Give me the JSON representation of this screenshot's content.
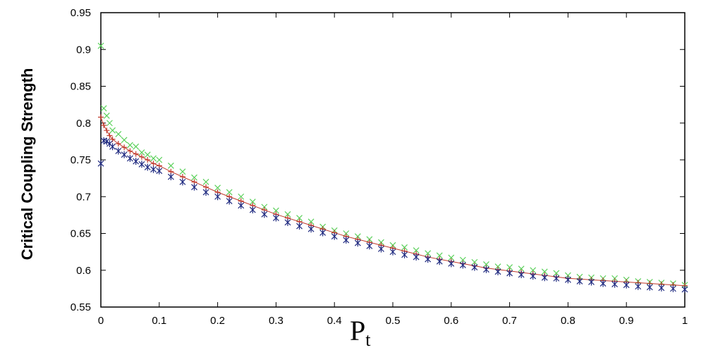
{
  "chart_data": {
    "type": "scatter",
    "title": "",
    "ylabel": "Critical Coupling Strength",
    "xlabel_main": "P",
    "xlabel_sub": "t",
    "xlim": [
      0,
      1
    ],
    "ylim": [
      0.55,
      0.95
    ],
    "xticks": [
      0,
      0.1,
      0.2,
      0.3,
      0.4,
      0.5,
      0.6,
      0.7,
      0.8,
      0.9,
      1
    ],
    "xtick_labels": [
      "0",
      "0.1",
      "0.2",
      "0.3",
      "0.4",
      "0.5",
      "0.6",
      "0.7",
      "0.8",
      "0.9",
      "1"
    ],
    "yticks": [
      0.55,
      0.6,
      0.65,
      0.7,
      0.75,
      0.8,
      0.85,
      0.9,
      0.95
    ],
    "ytick_labels": [
      "0.55",
      "0.6",
      "0.65",
      "0.7",
      "0.75",
      "0.8",
      "0.85",
      "0.9",
      "0.95"
    ],
    "grid": false,
    "series": [
      {
        "color": "#5ad05a",
        "marker": "x",
        "x": [
          0,
          0.005,
          0.01,
          0.015,
          0.02,
          0.03,
          0.04,
          0.05,
          0.06,
          0.07,
          0.08,
          0.09,
          0.1,
          0.12,
          0.14,
          0.16,
          0.18,
          0.2,
          0.22,
          0.24,
          0.26,
          0.28,
          0.3,
          0.32,
          0.34,
          0.36,
          0.38,
          0.4,
          0.42,
          0.44,
          0.46,
          0.48,
          0.5,
          0.52,
          0.54,
          0.56,
          0.58,
          0.6,
          0.62,
          0.64,
          0.66,
          0.68,
          0.7,
          0.72,
          0.74,
          0.76,
          0.78,
          0.8,
          0.82,
          0.84,
          0.86,
          0.88,
          0.9,
          0.92,
          0.94,
          0.96,
          0.98,
          1.0
        ],
        "y": [
          0.905,
          0.82,
          0.81,
          0.8,
          0.79,
          0.785,
          0.777,
          0.77,
          0.768,
          0.76,
          0.757,
          0.752,
          0.75,
          0.742,
          0.734,
          0.726,
          0.72,
          0.712,
          0.706,
          0.7,
          0.693,
          0.686,
          0.681,
          0.676,
          0.671,
          0.666,
          0.659,
          0.654,
          0.65,
          0.646,
          0.642,
          0.638,
          0.634,
          0.631,
          0.627,
          0.623,
          0.62,
          0.617,
          0.614,
          0.611,
          0.608,
          0.605,
          0.604,
          0.602,
          0.6,
          0.598,
          0.596,
          0.593,
          0.591,
          0.59,
          0.589,
          0.589,
          0.587,
          0.585,
          0.584,
          0.583,
          0.582,
          0.58
        ]
      },
      {
        "color": "#c0392b",
        "marker": "+",
        "x": [
          0,
          0.005,
          0.01,
          0.015,
          0.02,
          0.03,
          0.04,
          0.05,
          0.06,
          0.07,
          0.08,
          0.09,
          0.1,
          0.12,
          0.14,
          0.16,
          0.18,
          0.2,
          0.22,
          0.24,
          0.26,
          0.28,
          0.3,
          0.32,
          0.34,
          0.36,
          0.38,
          0.4,
          0.42,
          0.44,
          0.46,
          0.48,
          0.5,
          0.52,
          0.54,
          0.56,
          0.58,
          0.6,
          0.62,
          0.64,
          0.66,
          0.68,
          0.7,
          0.72,
          0.74,
          0.76,
          0.78,
          0.8,
          0.82,
          0.84,
          0.86,
          0.88,
          0.9,
          0.92,
          0.94,
          0.96,
          0.98,
          1.0
        ],
        "y": [
          0.808,
          0.797,
          0.79,
          0.783,
          0.778,
          0.772,
          0.767,
          0.762,
          0.758,
          0.754,
          0.75,
          0.745,
          0.742,
          0.734,
          0.727,
          0.72,
          0.713,
          0.706,
          0.7,
          0.694,
          0.688,
          0.682,
          0.676,
          0.671,
          0.666,
          0.661,
          0.656,
          0.651,
          0.646,
          0.642,
          0.638,
          0.634,
          0.63,
          0.626,
          0.622,
          0.618,
          0.615,
          0.612,
          0.609,
          0.606,
          0.603,
          0.601,
          0.599,
          0.597,
          0.595,
          0.593,
          0.591,
          0.589,
          0.588,
          0.587,
          0.586,
          0.585,
          0.584,
          0.583,
          0.582,
          0.581,
          0.58,
          0.579
        ]
      },
      {
        "color": "#1f2a80",
        "marker": "*",
        "x": [
          0,
          0.005,
          0.01,
          0.015,
          0.02,
          0.03,
          0.04,
          0.05,
          0.06,
          0.07,
          0.08,
          0.09,
          0.1,
          0.12,
          0.14,
          0.16,
          0.18,
          0.2,
          0.22,
          0.24,
          0.26,
          0.28,
          0.3,
          0.32,
          0.34,
          0.36,
          0.38,
          0.4,
          0.42,
          0.44,
          0.46,
          0.48,
          0.5,
          0.52,
          0.54,
          0.56,
          0.58,
          0.6,
          0.62,
          0.64,
          0.66,
          0.68,
          0.7,
          0.72,
          0.74,
          0.76,
          0.78,
          0.8,
          0.82,
          0.84,
          0.86,
          0.88,
          0.9,
          0.92,
          0.94,
          0.96,
          0.98,
          1.0
        ],
        "y": [
          0.745,
          0.776,
          0.775,
          0.772,
          0.768,
          0.762,
          0.757,
          0.752,
          0.748,
          0.744,
          0.74,
          0.737,
          0.735,
          0.727,
          0.72,
          0.713,
          0.706,
          0.7,
          0.694,
          0.688,
          0.682,
          0.676,
          0.671,
          0.665,
          0.66,
          0.656,
          0.651,
          0.646,
          0.641,
          0.637,
          0.633,
          0.629,
          0.625,
          0.621,
          0.618,
          0.615,
          0.612,
          0.609,
          0.607,
          0.604,
          0.601,
          0.598,
          0.596,
          0.594,
          0.592,
          0.59,
          0.589,
          0.587,
          0.585,
          0.584,
          0.582,
          0.581,
          0.58,
          0.578,
          0.577,
          0.576,
          0.575,
          0.574
        ]
      }
    ]
  }
}
